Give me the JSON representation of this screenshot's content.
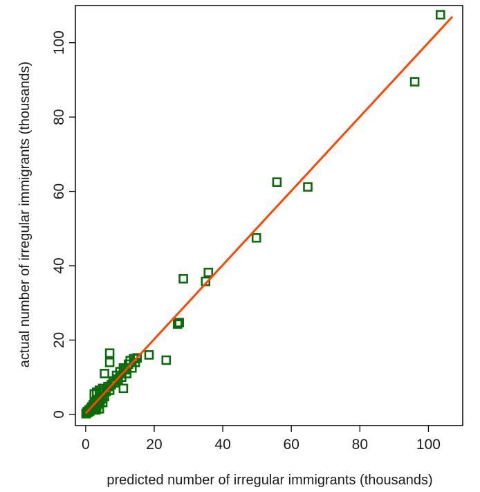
{
  "chart_data": {
    "type": "scatter",
    "xlabel": "predicted number of irregular immigrants (thousands)",
    "ylabel": "actual number of irregular immigrants (thousands)",
    "xlim": [
      -3,
      110
    ],
    "ylim": [
      -3,
      110
    ],
    "xticks": [
      0,
      20,
      40,
      60,
      80,
      100
    ],
    "yticks": [
      0,
      20,
      40,
      60,
      80,
      100
    ],
    "x_tick_labels": [
      "0",
      "20",
      "40",
      "60",
      "80",
      "100"
    ],
    "y_tick_labels": [
      "0",
      "20",
      "40",
      "60",
      "80",
      "100"
    ],
    "grid": false,
    "legend": "none",
    "series": [
      {
        "kind": "scatter",
        "marker": "hollow-square",
        "color": "#0a6b0a",
        "points": [
          [
            0.1,
            0.2
          ],
          [
            0.3,
            0.4
          ],
          [
            0.5,
            0.8
          ],
          [
            0.8,
            0.6
          ],
          [
            1.0,
            1.2
          ],
          [
            1.2,
            0.9
          ],
          [
            1.5,
            1.6
          ],
          [
            1.8,
            2.0
          ],
          [
            2.0,
            1.5
          ],
          [
            2.2,
            2.6
          ],
          [
            2.5,
            3.0
          ],
          [
            2.8,
            2.2
          ],
          [
            3.0,
            1.2
          ],
          [
            3.0,
            3.4
          ],
          [
            3.2,
            1.8
          ],
          [
            3.5,
            4.0
          ],
          [
            3.8,
            2.8
          ],
          [
            4.0,
            1.5
          ],
          [
            4.2,
            3.5
          ],
          [
            4.5,
            5.0
          ],
          [
            4.8,
            4.2
          ],
          [
            5.0,
            3.2
          ],
          [
            5.2,
            5.8
          ],
          [
            5.5,
            4.8
          ],
          [
            2.5,
            5.5
          ],
          [
            3.2,
            6.0
          ],
          [
            4.0,
            6.5
          ],
          [
            5.0,
            7.0
          ],
          [
            5.5,
            11.0
          ],
          [
            6.0,
            6.2
          ],
          [
            6.5,
            7.5
          ],
          [
            7.0,
            6.5
          ],
          [
            7.0,
            14.0
          ],
          [
            7.0,
            16.5
          ],
          [
            7.5,
            8.0
          ],
          [
            8.0,
            9.0
          ],
          [
            8.5,
            8.5
          ],
          [
            9.0,
            10.5
          ],
          [
            9.5,
            9.5
          ],
          [
            10.0,
            11.5
          ],
          [
            10.5,
            10.0
          ],
          [
            11.0,
            7.0
          ],
          [
            11.0,
            12.5
          ],
          [
            11.5,
            12.0
          ],
          [
            12.0,
            11.0
          ],
          [
            12.5,
            13.5
          ],
          [
            13.0,
            14.5
          ],
          [
            13.5,
            12.5
          ],
          [
            14.0,
            15.0
          ],
          [
            14.5,
            14.0
          ],
          [
            15.0,
            15.2
          ],
          [
            18.5,
            16.0
          ],
          [
            23.5,
            14.6
          ],
          [
            26.8,
            24.3
          ],
          [
            27.3,
            24.7
          ],
          [
            28.5,
            36.5
          ],
          [
            35.0,
            35.8
          ],
          [
            35.8,
            38.2
          ],
          [
            49.8,
            47.5
          ],
          [
            55.8,
            62.5
          ],
          [
            64.8,
            61.2
          ],
          [
            96.0,
            89.5
          ],
          [
            103.5,
            107.5
          ]
        ]
      },
      {
        "kind": "line",
        "name": "",
        "color": "#ff4500",
        "x": [
          0,
          107
        ],
        "y": [
          0.3,
          107
        ]
      }
    ]
  }
}
